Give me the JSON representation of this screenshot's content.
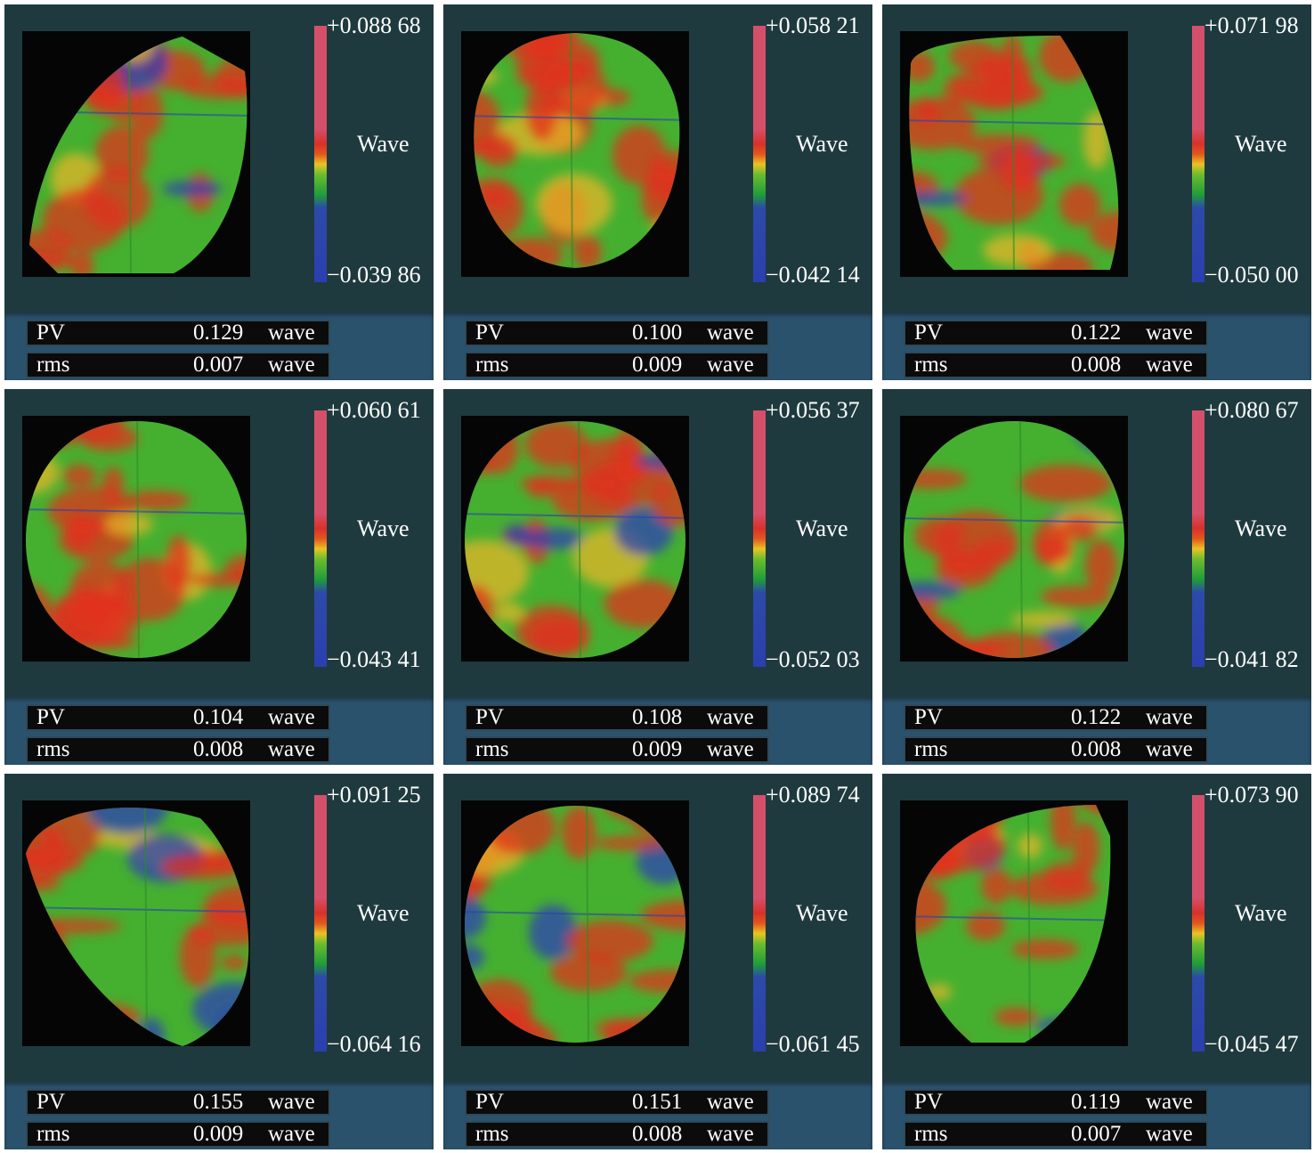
{
  "panels": [
    {
      "max": "+0.088 68",
      "min": "−0.039 86",
      "unit": "Wave",
      "pv": "0.129",
      "rms": "0.007",
      "shape": "leaf-right"
    },
    {
      "max": "+0.058 21",
      "min": "−0.042 14",
      "unit": "Wave",
      "pv": "0.100",
      "rms": "0.009",
      "shape": "circle-cut-top"
    },
    {
      "max": "+0.071 98",
      "min": "−0.050 00",
      "unit": "Wave",
      "pv": "0.122",
      "rms": "0.008",
      "shape": "leaf-left"
    },
    {
      "max": "+0.060 61",
      "min": "−0.043 41",
      "unit": "Wave",
      "pv": "0.104",
      "rms": "0.008",
      "shape": "circle"
    },
    {
      "max": "+0.056 37",
      "min": "−0.052 03",
      "unit": "Wave",
      "pv": "0.108",
      "rms": "0.009",
      "shape": "circle"
    },
    {
      "max": "+0.080 67",
      "min": "−0.041 82",
      "unit": "Wave",
      "pv": "0.122",
      "rms": "0.008",
      "shape": "circle"
    },
    {
      "max": "+0.091 25",
      "min": "−0.064 16",
      "unit": "Wave",
      "pv": "0.155",
      "rms": "0.009",
      "shape": "leaf-down"
    },
    {
      "max": "+0.089 74",
      "min": "−0.061 45",
      "unit": "Wave",
      "pv": "0.151",
      "rms": "0.008",
      "shape": "circle"
    },
    {
      "max": "+0.073 90",
      "min": "−0.045 47",
      "unit": "Wave",
      "pv": "0.119",
      "rms": "0.007",
      "shape": "leaf-up"
    }
  ],
  "labels": {
    "pv": "PV",
    "rms": "rms",
    "wave": "wave"
  },
  "colors": {
    "panel": "#1f3a3e",
    "band": "#2b526c",
    "high": "#d8312a",
    "mid": "#3fae2f",
    "low": "#2c4aa8"
  }
}
